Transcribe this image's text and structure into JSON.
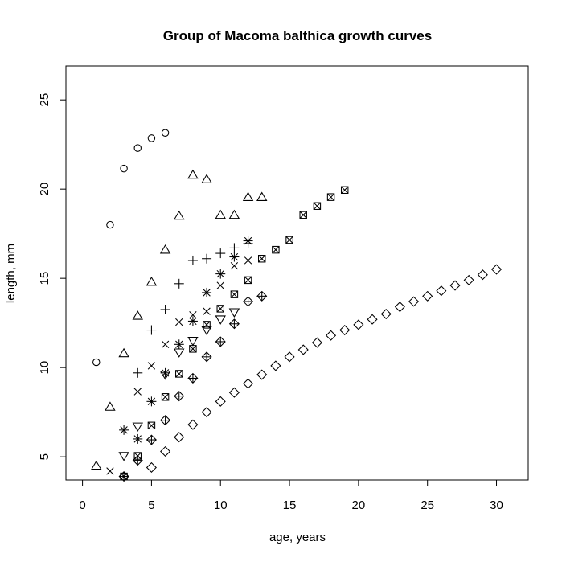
{
  "chart_data": {
    "type": "scatter",
    "title": "Group of Macoma balthica growth curves",
    "xlabel": "age, years",
    "ylabel": "length, mm",
    "xlim": [
      -1.2,
      32.3
    ],
    "ylim": [
      3.7,
      26.9
    ],
    "xticks": [
      0,
      5,
      10,
      15,
      20,
      25,
      30
    ],
    "yticks": [
      5,
      10,
      15,
      20,
      25
    ],
    "grid": false,
    "legend": "none",
    "series": [
      {
        "marker": "circle",
        "x": [
          1,
          2,
          3,
          4,
          5,
          6
        ],
        "y": [
          10.3,
          18.0,
          21.15,
          22.3,
          22.85,
          23.15
        ]
      },
      {
        "marker": "triangle-up",
        "x": [
          1,
          2,
          3,
          4,
          5,
          6,
          7,
          8,
          9,
          10,
          11,
          12,
          13
        ],
        "y": [
          4.5,
          7.8,
          10.8,
          12.9,
          14.8,
          16.6,
          18.5,
          20.8,
          20.55,
          18.55,
          18.55,
          19.55,
          19.55
        ]
      },
      {
        "marker": "plus",
        "x": [
          4,
          5,
          6,
          7,
          8,
          9,
          10,
          11,
          12
        ],
        "y": [
          9.7,
          12.1,
          13.25,
          14.7,
          16.0,
          16.1,
          16.4,
          16.7,
          16.95
        ]
      },
      {
        "marker": "cross",
        "x": [
          2,
          4,
          5,
          6,
          7,
          8,
          9,
          10,
          11,
          12
        ],
        "y": [
          4.2,
          8.65,
          10.1,
          11.3,
          12.55,
          12.95,
          13.15,
          14.6,
          15.7,
          16.0
        ]
      },
      {
        "marker": "diamond",
        "x": [
          5,
          6,
          7,
          8,
          9,
          10,
          11,
          12,
          13,
          14,
          15,
          16,
          17,
          18,
          19,
          20,
          21,
          22,
          23,
          24,
          25,
          26,
          27,
          28,
          29,
          30
        ],
        "y": [
          4.4,
          5.3,
          6.1,
          6.8,
          7.5,
          8.1,
          8.6,
          9.1,
          9.6,
          10.1,
          10.6,
          11.0,
          11.4,
          11.8,
          12.1,
          12.4,
          12.7,
          13.0,
          13.4,
          13.7,
          14.0,
          14.3,
          14.6,
          14.9,
          15.2,
          15.5
        ]
      },
      {
        "marker": "triangle-down",
        "x": [
          3,
          4,
          6,
          7,
          8,
          9,
          10,
          11
        ],
        "y": [
          5.05,
          6.7,
          9.6,
          10.85,
          11.5,
          12.1,
          12.7,
          13.1
        ]
      },
      {
        "marker": "star",
        "x": [
          3,
          4,
          5,
          6,
          7,
          8,
          9,
          10,
          11,
          12
        ],
        "y": [
          6.5,
          6.0,
          8.1,
          9.7,
          11.3,
          12.6,
          14.2,
          15.25,
          16.2,
          17.1
        ]
      },
      {
        "marker": "diamond-plus",
        "x": [
          3,
          4,
          5,
          6,
          7,
          8,
          9,
          10,
          11,
          12,
          13
        ],
        "y": [
          3.9,
          4.8,
          5.95,
          7.05,
          8.4,
          9.4,
          10.6,
          11.45,
          12.45,
          13.7,
          14.0
        ]
      },
      {
        "marker": "square-cross",
        "x": [
          3,
          4,
          5,
          6,
          7,
          8,
          9,
          10,
          11,
          12,
          13,
          14,
          15,
          16,
          17,
          18,
          19
        ],
        "y": [
          3.9,
          5.05,
          6.75,
          8.35,
          9.65,
          11.05,
          12.4,
          13.3,
          14.1,
          14.9,
          16.1,
          16.6,
          17.15,
          18.55,
          19.05,
          19.55,
          19.95
        ]
      }
    ]
  }
}
